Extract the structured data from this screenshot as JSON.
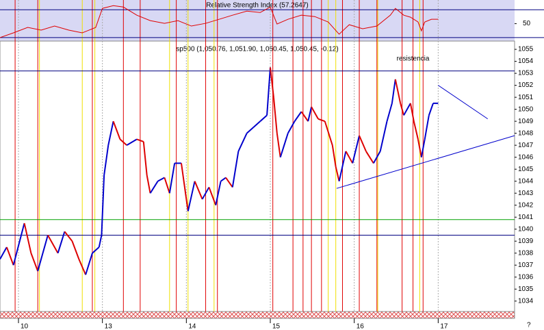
{
  "chart_data": {
    "type": "line",
    "rsi": {
      "title": "Relative Strength Index (57.2647)",
      "ylim": [
        25,
        84
      ],
      "yticks": [
        50
      ],
      "levels": [
        70,
        30
      ],
      "color": "#e00000",
      "x": [
        -0.22,
        -0.06,
        0.11,
        0.27,
        0.43,
        0.6,
        0.76,
        0.92,
        1.0,
        1.13,
        1.25,
        1.41,
        1.57,
        1.74,
        1.9,
        2.06,
        2.23,
        2.39,
        2.55,
        2.72,
        2.88,
        3.0,
        3.08,
        3.21,
        3.37,
        3.53,
        3.69,
        3.82,
        3.94,
        4.1,
        4.27,
        4.43,
        4.49,
        4.59,
        4.67,
        4.76,
        4.8,
        4.84,
        4.92,
        5.0
      ],
      "values": [
        30,
        36.8,
        44.6,
        40.7,
        46.6,
        40.7,
        36.8,
        44.6,
        72,
        75.9,
        73.9,
        62.2,
        54.4,
        50.5,
        54.4,
        46.6,
        50.5,
        56.3,
        62.2,
        68,
        66.1,
        73.9,
        49.5,
        56.3,
        62.2,
        60.2,
        52.4,
        34.9,
        48.5,
        42.7,
        46.6,
        62.2,
        72,
        62.2,
        59.3,
        52.4,
        39.8,
        52.4,
        56.3,
        56.3
      ]
    },
    "title": "sp500 (1,050.76, 1,051.90, 1,050.45, 1,050.45, -0.12)",
    "ylim": [
      1033.13,
      1055.69
    ],
    "yticks": [
      1034,
      1035,
      1036,
      1037,
      1038,
      1039,
      1040,
      1041,
      1042,
      1043,
      1044,
      1045,
      1046,
      1047,
      1048,
      1049,
      1050,
      1051,
      1052,
      1053,
      1054,
      1055
    ],
    "xlim": [
      -0.22,
      5.91
    ],
    "xticks": [
      {
        "value": 0,
        "label": "10"
      },
      {
        "value": 1,
        "label": "13"
      },
      {
        "value": 2,
        "label": "14"
      },
      {
        "value": 3,
        "label": "15"
      },
      {
        "value": 4,
        "label": "16"
      },
      {
        "value": 5,
        "label": "17"
      }
    ],
    "corner_label": "?",
    "up_color": "#0000cc",
    "down_color": "#dd0000",
    "x": [
      -0.22,
      -0.14,
      -0.06,
      0.07,
      0.15,
      0.23,
      0.35,
      0.47,
      0.55,
      0.64,
      0.72,
      0.8,
      0.88,
      0.96,
      0.99,
      1.02,
      1.07,
      1.13,
      1.21,
      1.29,
      1.41,
      1.49,
      1.53,
      1.57,
      1.66,
      1.74,
      1.8,
      1.86,
      1.94,
      1.98,
      2.02,
      2.1,
      2.19,
      2.27,
      2.35,
      2.41,
      2.47,
      2.55,
      2.62,
      2.72,
      2.8,
      2.88,
      2.96,
      3.0,
      3.04,
      3.08,
      3.12,
      3.21,
      3.29,
      3.37,
      3.45,
      3.49,
      3.57,
      3.65,
      3.74,
      3.78,
      3.82,
      3.9,
      3.98,
      4.06,
      4.14,
      4.23,
      4.31,
      4.39,
      4.45,
      4.49,
      4.55,
      4.59,
      4.67,
      4.71,
      4.76,
      4.8,
      4.84,
      4.89,
      4.94,
      5.0
    ],
    "values": [
      1037.5,
      1038.5,
      1037,
      1040.5,
      1038,
      1036.5,
      1039.5,
      1038,
      1039.8,
      1039,
      1037.5,
      1036.2,
      1038,
      1038.5,
      1039.5,
      1044.5,
      1047,
      1049,
      1047.5,
      1047,
      1047.5,
      1047.3,
      1044.5,
      1043,
      1044,
      1044.3,
      1043,
      1045.5,
      1045.5,
      1043.5,
      1041.5,
      1044,
      1042.5,
      1043.5,
      1042,
      1044,
      1044.3,
      1043.5,
      1046.5,
      1048,
      1048.5,
      1049,
      1049.5,
      1053.5,
      1051,
      1048,
      1046,
      1048,
      1049,
      1049.8,
      1049,
      1050.2,
      1049.2,
      1049,
      1047,
      1045.2,
      1044,
      1046.5,
      1045.5,
      1047.8,
      1046.5,
      1045.5,
      1046.5,
      1049,
      1050.5,
      1052.5,
      1050.5,
      1049.5,
      1050.5,
      1049,
      1047.5,
      1046,
      1047.5,
      1049.5,
      1050.5,
      1050.5
    ],
    "hlines": [
      {
        "value": 1053.2,
        "color": "#000080"
      },
      {
        "value": 1040.8,
        "color": "#00a000"
      },
      {
        "value": 1039.5,
        "color": "#000080"
      }
    ],
    "red_lines": [
      -0.04,
      0.23,
      0.88,
      1.25,
      1.45,
      1.88,
      2.23,
      2.37,
      3.03,
      3.27,
      3.39,
      3.49,
      3.61,
      3.86,
      4.06,
      4.27,
      4.57,
      4.7,
      4.82
    ],
    "yellow_lines": [
      0.25,
      0.76,
      0.91,
      1.8,
      2.02,
      2.33,
      3.69,
      3.78,
      4.28,
      4.78
    ],
    "trendlines": [
      [
        3.79,
        1043.4,
        5.91,
        1047.8
      ],
      [
        5.0,
        1052,
        5.59,
        1049.2
      ]
    ],
    "annotation": {
      "text": "resistencia",
      "x": 4.7,
      "y": 1054.2
    }
  }
}
